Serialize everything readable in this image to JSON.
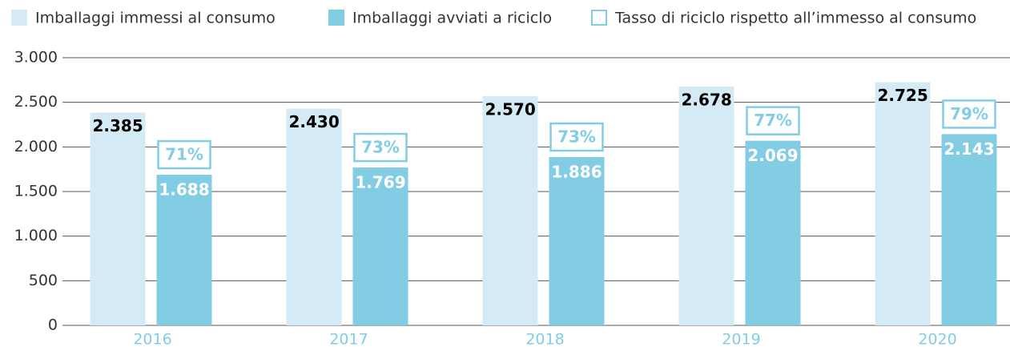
{
  "chart_data": {
    "type": "bar",
    "categories": [
      "2016",
      "2017",
      "2018",
      "2019",
      "2020"
    ],
    "series": [
      {
        "name": "Imballaggi immessi al consumo",
        "color": "#d4ebf5",
        "values": [
          2385,
          2430,
          2570,
          2678,
          2725
        ],
        "value_labels": [
          "2.385",
          "2.430",
          "2.570",
          "2.678",
          "2.725"
        ]
      },
      {
        "name": "Imballaggi avviati a riciclo",
        "color": "#82cde3",
        "values": [
          1688,
          1769,
          1886,
          2069,
          2143
        ],
        "value_labels": [
          "1.688",
          "1.769",
          "1.886",
          "2.069",
          "2.143"
        ]
      },
      {
        "name": "Tasso di riciclo rispetto all’immesso al consumo",
        "color": "#82cde3",
        "values": [
          71,
          73,
          73,
          77,
          79
        ],
        "value_labels": [
          "71%",
          "73%",
          "73%",
          "77%",
          "79%"
        ]
      }
    ],
    "ylim": [
      0,
      3000
    ],
    "yticks": [
      0,
      500,
      {
        "value": 1000,
        "label": "1.000"
      },
      {
        "value": 1500,
        "label": "1.500"
      },
      {
        "value": 2000,
        "label": "2.000"
      },
      {
        "value": 2500,
        "label": "2.500"
      },
      {
        "value": 3000,
        "label": "3.000"
      }
    ],
    "grid": true
  }
}
